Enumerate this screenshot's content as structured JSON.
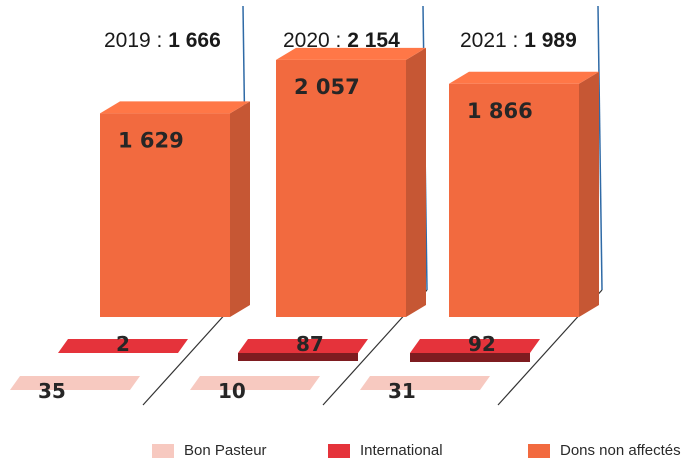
{
  "chart_data": {
    "type": "bar",
    "categories": [
      "2019",
      "2020",
      "2021"
    ],
    "totals": [
      {
        "year": "2019",
        "separator": " : ",
        "value": "1 666"
      },
      {
        "year": "2020",
        "separator": " : ",
        "value": "2 154"
      },
      {
        "year": "2021",
        "separator": " : ",
        "value": "1 989"
      }
    ],
    "series": [
      {
        "name": "Bon Pasteur",
        "values": [
          35,
          10,
          31
        ],
        "labels": [
          "35",
          "10",
          "31"
        ],
        "color": "#f7c9c0"
      },
      {
        "name": "International",
        "values": [
          2,
          87,
          92
        ],
        "labels": [
          "2",
          "87",
          "92"
        ],
        "color": "#e5333b"
      },
      {
        "name": "Dons non affectés",
        "values": [
          1629,
          2057,
          1866
        ],
        "labels": [
          "1 629",
          "2 057",
          "1 866"
        ],
        "color": "#f26a3f"
      }
    ],
    "legend": {
      "position": "bottom"
    },
    "grid": false
  }
}
